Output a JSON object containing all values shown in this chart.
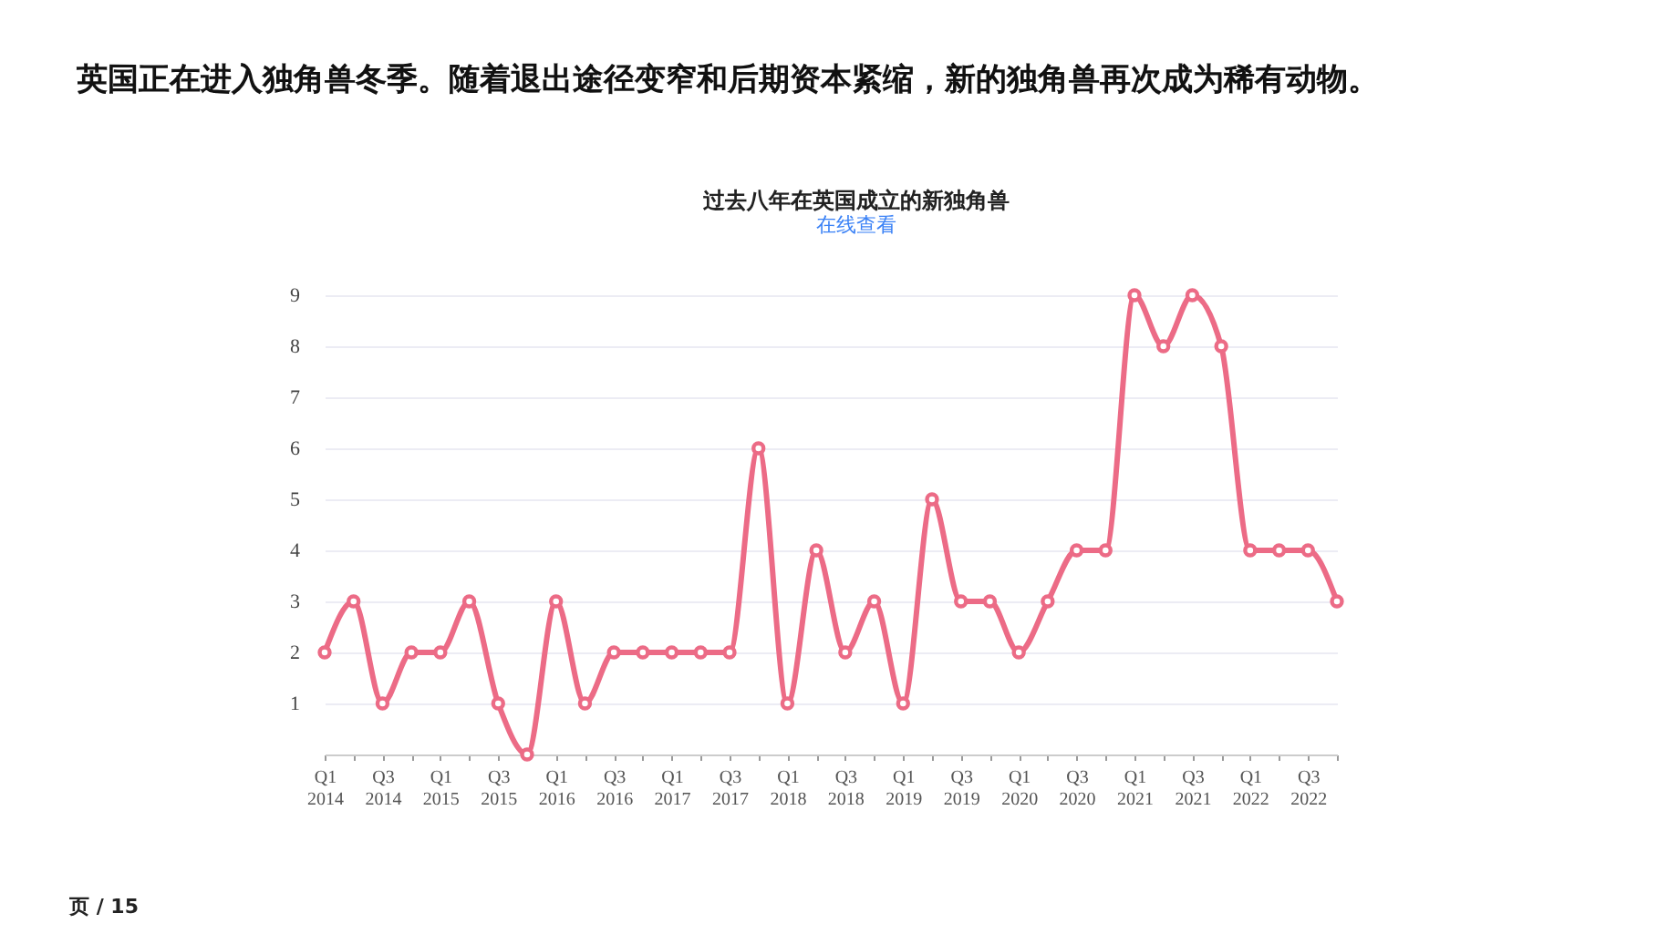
{
  "chart_data": {
    "type": "line",
    "title": "过去八年在英国成立的新独角兽",
    "subtitle": "在线查看",
    "annotations": [
      "英国正在进入独角兽冬季。随着退出途径变窄和后期资本紧缩，新的独角兽再次成为稀有动物。",
      "页 / 15"
    ],
    "categories": [
      "Q1 2014",
      null,
      "Q3 2014",
      null,
      "Q1 2015",
      null,
      "Q3 2015",
      null,
      "Q1 2016",
      null,
      "Q3 2016",
      null,
      "Q1 2017",
      null,
      "Q3 2017",
      null,
      "Q1 2018",
      null,
      "Q3 2018",
      null,
      "Q1 2019",
      null,
      "Q3 2019",
      null,
      "Q1 2020",
      null,
      "Q3 2020",
      null,
      "Q1 2021",
      null,
      "Q3 2021",
      null,
      "Q1 2022",
      null,
      "Q3 2022",
      null
    ],
    "series": [
      {
        "color": "#ec6b86",
        "values": [
          2,
          3,
          1,
          2,
          2,
          3,
          1,
          0,
          3,
          1,
          2,
          2,
          2,
          2,
          2,
          6,
          1,
          4,
          2,
          3,
          1,
          5,
          3,
          3,
          2,
          3,
          4,
          4,
          9,
          8,
          9,
          8,
          4,
          4,
          4,
          3
        ]
      }
    ],
    "ylim": [
      0,
      9
    ],
    "yticks": [
      1,
      2,
      3,
      4,
      5,
      6,
      7,
      8,
      9
    ],
    "grid": "y",
    "marker": "circle",
    "line_style": "solid"
  }
}
